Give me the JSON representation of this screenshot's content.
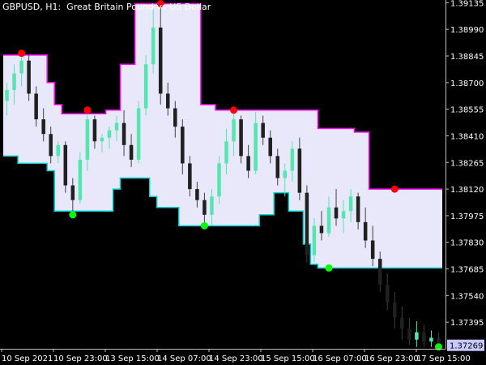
{
  "title": "GBPUSD, H1:  Great Britain Pound vs US Dollar",
  "colors": {
    "background": "#000000",
    "channel_fill": "#e8e8fa",
    "upper_line": "#ff00ff",
    "lower_line": "#00d4d4",
    "bull_candle": "#55e6b0",
    "bear_candle": "#ffffff",
    "dot_high": "#ff0000",
    "dot_low": "#00ff00",
    "axis": "#c0c0c0",
    "current_price_bg": "#c8c8ff"
  },
  "chart_data": {
    "type": "candlestick",
    "symbol": "GBPUSD",
    "timeframe": "H1",
    "ylim": [
      1.3725,
      1.3915
    ],
    "y_ticks": [
      "1.39135",
      "1.38990",
      "1.38845",
      "1.38700",
      "1.38555",
      "1.38410",
      "1.38265",
      "1.38120",
      "1.37975",
      "1.37830",
      "1.37685",
      "1.37540",
      "1.37395"
    ],
    "x_ticks": [
      "10 Sep 2021",
      "10 Sep 23:00",
      "13 Sep 15:00",
      "14 Sep 07:00",
      "14 Sep 23:00",
      "15 Sep 15:00",
      "16 Sep 07:00",
      "16 Sep 23:00",
      "17 Sep 15:00"
    ],
    "current_price": "1.37269",
    "upper_channel": [
      1.3885,
      1.3885,
      1.3885,
      1.3885,
      1.3885,
      1.3885,
      1.387,
      1.3858,
      1.3853,
      1.3853,
      1.3853,
      1.3853,
      1.3853,
      1.3853,
      1.3855,
      1.3855,
      1.388,
      1.388,
      1.3913,
      1.3913,
      1.3913,
      1.3913,
      1.3913,
      1.3913,
      1.3913,
      1.3913,
      1.3913,
      1.3858,
      1.3858,
      1.3855,
      1.3855,
      1.3855,
      1.3855,
      1.3855,
      1.3855,
      1.3855,
      1.3855,
      1.3855,
      1.3855,
      1.3855,
      1.3855,
      1.3855,
      1.3855,
      1.3845,
      1.3845,
      1.3845,
      1.3845,
      1.3845,
      1.3843,
      1.3843,
      1.3812,
      1.3812,
      1.3812,
      1.3812,
      1.3812,
      1.3812,
      1.3812,
      1.3812,
      1.3812,
      1.3812
    ],
    "lower_channel": [
      1.383,
      1.383,
      1.3826,
      1.3826,
      1.3826,
      1.3826,
      1.3822,
      1.38,
      1.38,
      1.38,
      1.38,
      1.38,
      1.38,
      1.38,
      1.38,
      1.3812,
      1.3818,
      1.3818,
      1.3818,
      1.3818,
      1.3808,
      1.3802,
      1.3802,
      1.3802,
      1.3792,
      1.3792,
      1.3792,
      1.3792,
      1.3792,
      1.3792,
      1.3792,
      1.3792,
      1.3792,
      1.3792,
      1.3792,
      1.3798,
      1.3798,
      1.381,
      1.381,
      1.38,
      1.38,
      1.3782,
      1.3771,
      1.3769,
      1.3769,
      1.3769,
      1.3769,
      1.3769,
      1.3769,
      1.3769,
      1.3769,
      1.3769,
      1.3769,
      1.3769,
      1.3769,
      1.3769,
      1.3769,
      1.3769,
      1.3769,
      1.3769
    ],
    "candles": [
      [
        1.386,
        1.387,
        1.3852,
        1.3866
      ],
      [
        1.3866,
        1.388,
        1.3858,
        1.3875
      ],
      [
        1.3875,
        1.3886,
        1.3868,
        1.3882
      ],
      [
        1.3882,
        1.3885,
        1.386,
        1.3864
      ],
      [
        1.3864,
        1.3868,
        1.3846,
        1.385
      ],
      [
        1.385,
        1.3856,
        1.3838,
        1.3842
      ],
      [
        1.3842,
        1.3846,
        1.3826,
        1.383
      ],
      [
        1.383,
        1.3838,
        1.3826,
        1.3836
      ],
      [
        1.3836,
        1.3838,
        1.381,
        1.3814
      ],
      [
        1.3814,
        1.3818,
        1.3798,
        1.3806
      ],
      [
        1.3806,
        1.3832,
        1.3804,
        1.3828
      ],
      [
        1.3828,
        1.3855,
        1.3822,
        1.385
      ],
      [
        1.385,
        1.3852,
        1.3834,
        1.3838
      ],
      [
        1.3838,
        1.3842,
        1.3832,
        1.384
      ],
      [
        1.384,
        1.3846,
        1.3834,
        1.3844
      ],
      [
        1.3844,
        1.3852,
        1.3838,
        1.3848
      ],
      [
        1.3848,
        1.3855,
        1.383,
        1.3836
      ],
      [
        1.3836,
        1.3842,
        1.3824,
        1.3828
      ],
      [
        1.3828,
        1.386,
        1.3826,
        1.3856
      ],
      [
        1.3856,
        1.3885,
        1.3852,
        1.388
      ],
      [
        1.388,
        1.391,
        1.3875,
        1.39
      ],
      [
        1.39,
        1.3913,
        1.3858,
        1.3864
      ],
      [
        1.3864,
        1.387,
        1.3852,
        1.3856
      ],
      [
        1.3856,
        1.386,
        1.384,
        1.3846
      ],
      [
        1.3846,
        1.385,
        1.382,
        1.3826
      ],
      [
        1.3826,
        1.383,
        1.3808,
        1.3812
      ],
      [
        1.3812,
        1.3816,
        1.3802,
        1.3806
      ],
      [
        1.3806,
        1.381,
        1.3794,
        1.3798
      ],
      [
        1.3798,
        1.3812,
        1.3792,
        1.3808
      ],
      [
        1.3808,
        1.383,
        1.3804,
        1.3826
      ],
      [
        1.3826,
        1.3845,
        1.382,
        1.3838
      ],
      [
        1.3838,
        1.3855,
        1.383,
        1.385
      ],
      [
        1.385,
        1.3852,
        1.3826,
        1.383
      ],
      [
        1.383,
        1.3836,
        1.3818,
        1.3822
      ],
      [
        1.3822,
        1.3854,
        1.382,
        1.3848
      ],
      [
        1.3848,
        1.3852,
        1.3836,
        1.384
      ],
      [
        1.384,
        1.3844,
        1.3826,
        1.383
      ],
      [
        1.383,
        1.3834,
        1.3814,
        1.3818
      ],
      [
        1.3818,
        1.3826,
        1.3808,
        1.3822
      ],
      [
        1.3822,
        1.3838,
        1.3816,
        1.3834
      ],
      [
        1.3834,
        1.384,
        1.3806,
        1.381
      ],
      [
        1.381,
        1.3814,
        1.3772,
        1.3776
      ],
      [
        1.3776,
        1.3796,
        1.3772,
        1.3792
      ],
      [
        1.3792,
        1.38,
        1.3784,
        1.3788
      ],
      [
        1.3788,
        1.3808,
        1.3786,
        1.3802
      ],
      [
        1.3802,
        1.3812,
        1.3792,
        1.3796
      ],
      [
        1.3796,
        1.3806,
        1.3788,
        1.38
      ],
      [
        1.38,
        1.3812,
        1.3794,
        1.3808
      ],
      [
        1.3808,
        1.381,
        1.379,
        1.3794
      ],
      [
        1.3794,
        1.3802,
        1.378,
        1.3784
      ],
      [
        1.3784,
        1.3792,
        1.377,
        1.3774
      ],
      [
        1.3774,
        1.3778,
        1.3756,
        1.376
      ],
      [
        1.376,
        1.3766,
        1.3746,
        1.375
      ],
      [
        1.375,
        1.3756,
        1.3736,
        1.3742
      ],
      [
        1.3742,
        1.3748,
        1.373,
        1.3736
      ],
      [
        1.3736,
        1.3742,
        1.3727,
        1.373
      ],
      [
        1.373,
        1.374,
        1.3726,
        1.3734
      ],
      [
        1.3734,
        1.3738,
        1.3726,
        1.3729
      ],
      [
        1.3729,
        1.3735,
        1.3726,
        1.3731
      ],
      [
        1.3731,
        1.3734,
        1.3726,
        1.3727
      ]
    ],
    "high_dots": [
      [
        2,
        1.3886
      ],
      [
        11,
        1.3855
      ],
      [
        21,
        1.3913
      ],
      [
        31,
        1.3855
      ],
      [
        53,
        1.3812
      ]
    ],
    "low_dots": [
      [
        9,
        1.3798
      ],
      [
        27,
        1.3792
      ],
      [
        44,
        1.3769
      ],
      [
        59,
        1.3726
      ]
    ]
  }
}
